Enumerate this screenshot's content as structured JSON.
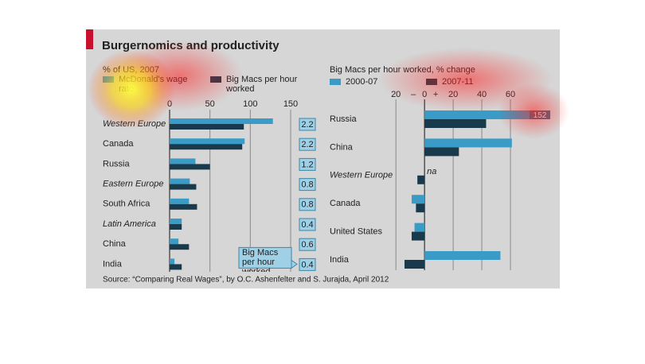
{
  "title": "Burgernomics and productivity",
  "source": "Source: “Comparing Real Wages”, by O.C. Ashenfelter and S. Jurajda, April 2012",
  "chart_data": [
    {
      "type": "bar",
      "orientation": "horizontal",
      "subtitle": "% of US, 2007",
      "categories": [
        "Western Europe",
        "Canada",
        "Russia",
        "Eastern Europe",
        "South Africa",
        "Latin America",
        "China",
        "India"
      ],
      "category_style": [
        "italic",
        "normal",
        "normal",
        "italic",
        "normal",
        "italic",
        "normal",
        "normal"
      ],
      "series": [
        {
          "name": "McDonald's wage rate",
          "color": "#3a9cc6",
          "values": [
            128,
            93,
            32,
            25,
            24,
            15,
            11,
            6
          ]
        },
        {
          "name": "Big Macs per hour worked",
          "color": "#183a4c",
          "values": [
            92,
            90,
            50,
            33,
            34,
            15,
            24,
            15
          ]
        },
        {
          "name": "Big Macs per hour worked",
          "type": "box",
          "color": "#9fd0e6",
          "values": [
            2.2,
            2.2,
            1.2,
            0.8,
            0.8,
            0.4,
            0.6,
            0.4
          ]
        }
      ],
      "xlim": [
        0,
        150
      ],
      "xticks": [
        0,
        50,
        100,
        150
      ],
      "grid": true
    },
    {
      "type": "bar",
      "orientation": "horizontal",
      "subtitle": "Big Macs per hour worked, % change",
      "categories": [
        "Russia",
        "China",
        "Western Europe",
        "Canada",
        "United States",
        "India"
      ],
      "category_style": [
        "normal",
        "normal",
        "italic",
        "normal",
        "normal",
        "normal"
      ],
      "series": [
        {
          "name": "2000-07",
          "color": "#3a9cc6",
          "values": [
            152,
            61,
            null,
            -9,
            -7,
            53
          ],
          "value_labels": [
            "152",
            null,
            "na",
            null,
            null,
            null
          ]
        },
        {
          "name": "2007-11",
          "color": "#183a4c",
          "values": [
            43,
            24,
            -5,
            -6,
            -9,
            -14
          ]
        }
      ],
      "xlim": [
        -24,
        70
      ],
      "xticks": [
        {
          "value": -20,
          "label": "20"
        },
        0,
        20,
        40,
        60
      ],
      "sign_labels": [
        "–",
        "+"
      ],
      "grid": true
    }
  ]
}
